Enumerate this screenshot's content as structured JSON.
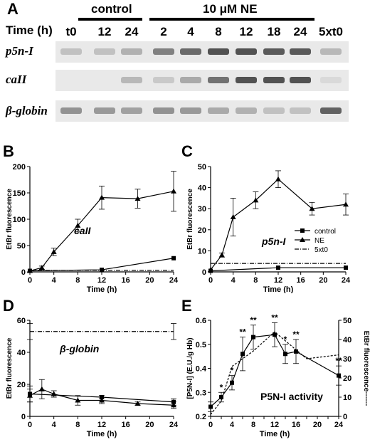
{
  "figure": {
    "panel_a": {
      "letter": "A",
      "group_control": "control",
      "group_ne": "10 μM NE",
      "time_label": "Time (h)",
      "lanes": [
        "t0",
        "12",
        "24",
        "2",
        "4",
        "8",
        "12",
        "18",
        "24",
        "5xt0"
      ],
      "genes": [
        "p5n-I",
        "caII",
        "β-globin"
      ]
    },
    "panel_b": {
      "letter": "B"
    },
    "panel_c": {
      "letter": "C"
    },
    "panel_d": {
      "letter": "D"
    },
    "panel_e": {
      "letter": "E"
    }
  },
  "colors": {
    "ink": "#000000",
    "gel_bg": "#e9e9e9",
    "band": "#4a4a4a"
  },
  "band_intensity": {
    "p5n-I": [
      0.25,
      0.25,
      0.35,
      0.65,
      0.8,
      0.95,
      0.95,
      0.9,
      0.9,
      0.3
    ],
    "caII": [
      0.0,
      0.0,
      0.3,
      0.2,
      0.4,
      0.75,
      0.95,
      0.95,
      0.95,
      0.1
    ],
    "β-globin": [
      0.55,
      0.5,
      0.45,
      0.55,
      0.5,
      0.4,
      0.35,
      0.25,
      0.25,
      0.85
    ]
  },
  "chart_data": [
    {
      "id": "B",
      "type": "line",
      "xlabel": "Time (h)",
      "ylabel": "EtBr fluorescence",
      "annotation": "caII",
      "xlim": [
        0,
        24
      ],
      "ylim": [
        0,
        200
      ],
      "xticks": [
        0,
        4,
        8,
        12,
        16,
        20,
        24
      ],
      "yticks": [
        0,
        50,
        100,
        150,
        200
      ],
      "series": [
        {
          "name": "NE",
          "marker": "triangle",
          "x": [
            0,
            2,
            4,
            8,
            12,
            18,
            24
          ],
          "y": [
            2,
            8,
            38,
            88,
            141,
            139,
            153
          ],
          "err": [
            0,
            3,
            7,
            12,
            22,
            18,
            38
          ]
        },
        {
          "name": "control",
          "marker": "square",
          "x": [
            0,
            12,
            24
          ],
          "y": [
            2,
            4,
            26
          ],
          "err": [
            0,
            0,
            0
          ]
        },
        {
          "name": "5xt0",
          "style": "dashdot",
          "x": [
            0,
            24
          ],
          "y": [
            3,
            3
          ]
        }
      ]
    },
    {
      "id": "C",
      "type": "line",
      "xlabel": "Time (h)",
      "ylabel": "EtBr fluorescence",
      "annotation": "p5n-I",
      "xlim": [
        0,
        24
      ],
      "ylim": [
        0,
        50
      ],
      "xticks": [
        0,
        4,
        8,
        12,
        16,
        20,
        24
      ],
      "yticks": [
        0,
        10,
        20,
        30,
        40,
        50
      ],
      "legend": [
        "control",
        "NE",
        "5xt0"
      ],
      "series": [
        {
          "name": "NE",
          "marker": "triangle",
          "x": [
            0,
            2,
            4,
            8,
            12,
            18,
            24
          ],
          "y": [
            1,
            8,
            26,
            34,
            44,
            30,
            32
          ],
          "err": [
            0,
            1,
            9,
            4,
            4,
            3,
            5
          ]
        },
        {
          "name": "control",
          "marker": "square",
          "x": [
            0,
            12,
            24
          ],
          "y": [
            0.5,
            2,
            2
          ],
          "err": [
            0,
            0,
            0
          ]
        },
        {
          "name": "5xt0",
          "style": "dashdot",
          "x": [
            0,
            24
          ],
          "y": [
            4,
            4
          ]
        }
      ]
    },
    {
      "id": "D",
      "type": "line",
      "xlabel": "Time (h)",
      "ylabel": "EtBr fluorescence",
      "annotation": "β-globin",
      "xlim": [
        0,
        24
      ],
      "ylim": [
        0,
        60
      ],
      "xticks": [
        0,
        4,
        8,
        12,
        16,
        20,
        24
      ],
      "yticks": [
        0,
        20,
        40,
        60
      ],
      "series": [
        {
          "name": "NE",
          "marker": "triangle",
          "x": [
            0,
            2,
            4,
            8,
            12,
            18,
            24
          ],
          "y": [
            13,
            17,
            14,
            10,
            10,
            8,
            7
          ],
          "err": [
            4,
            6,
            2,
            3,
            2,
            1,
            2
          ]
        },
        {
          "name": "control",
          "marker": "square",
          "x": [
            0,
            12,
            24
          ],
          "y": [
            14,
            12,
            9
          ],
          "err": [
            5,
            1,
            2
          ]
        },
        {
          "name": "5xt0",
          "style": "dashdot",
          "x": [
            0,
            24
          ],
          "y": [
            53,
            53
          ],
          "err": [
            5,
            5
          ]
        }
      ]
    },
    {
      "id": "E",
      "type": "line",
      "xlabel": "Time (h)",
      "ylabel": "[P5N-I] (E.U./g Hb)",
      "y2label": "EtBr fluorescence",
      "annotation": "P5N-I activity",
      "xlim": [
        0,
        24
      ],
      "ylim": [
        0.2,
        0.6
      ],
      "y2lim": [
        0,
        50
      ],
      "xticks": [
        0,
        2,
        4,
        6,
        8,
        10,
        12,
        14,
        16,
        18,
        20,
        22,
        24
      ],
      "yticks": [
        0.2,
        0.3,
        0.4,
        0.5,
        0.6
      ],
      "y2ticks": [
        0,
        10,
        20,
        30,
        40,
        50
      ],
      "series": [
        {
          "name": "P5N-I activity",
          "marker": "square",
          "x": [
            0,
            2,
            4,
            6,
            8,
            12,
            14,
            16,
            24
          ],
          "y": [
            0.24,
            0.28,
            0.34,
            0.46,
            0.53,
            0.54,
            0.46,
            0.47,
            0.37
          ],
          "err": [
            0.02,
            0.02,
            0.03,
            0.07,
            0.05,
            0.05,
            0.04,
            0.05,
            0.04
          ],
          "stars": [
            "",
            "*",
            "*",
            "**",
            "**",
            "**",
            "*",
            "**",
            "**"
          ]
        },
        {
          "name": "EtBr fluorescence",
          "style": "dotted",
          "axis": "y2",
          "x": [
            0,
            2,
            4,
            8,
            12,
            18,
            24
          ],
          "y": [
            1,
            8,
            26,
            34,
            44,
            30,
            32
          ]
        }
      ]
    }
  ]
}
